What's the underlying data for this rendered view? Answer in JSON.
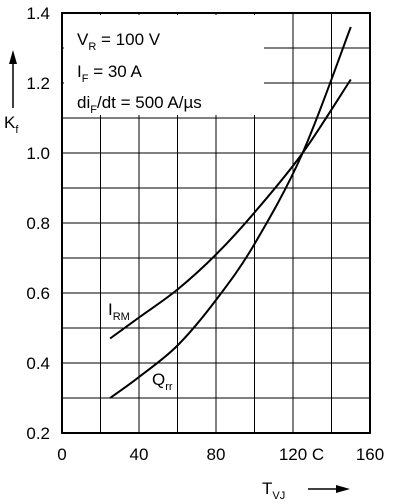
{
  "chart_data": {
    "type": "line",
    "xlim": [
      0,
      160
    ],
    "ylim": [
      0.2,
      1.4
    ],
    "x_ticks": [
      "0",
      "40",
      "80",
      "120",
      "160"
    ],
    "x_unit_label": "C",
    "y_ticks": [
      "0.2",
      "0.4",
      "0.6",
      "0.8",
      "1.0",
      "1.2",
      "1.4"
    ],
    "grid": true,
    "xlabel": {
      "main": "T",
      "sub": "VJ"
    },
    "ylabel": {
      "main": "K",
      "sub": "f"
    },
    "conditions": [
      {
        "main": "V",
        "sub": "R",
        "rest": " = 100 V"
      },
      {
        "main": "I",
        "sub": "F",
        "rest": " = 30 A"
      },
      {
        "main": "di",
        "sub": "F",
        "rest": "/dt = 500 A/µs"
      }
    ],
    "series": [
      {
        "name": "I_RM",
        "label": {
          "main": "I",
          "sub": "RM"
        },
        "x": [
          25,
          40,
          60,
          80,
          100,
          125,
          150
        ],
        "y": [
          0.47,
          0.53,
          0.61,
          0.71,
          0.83,
          1.0,
          1.21
        ]
      },
      {
        "name": "Q_rr",
        "label": {
          "main": "Q",
          "sub": "rr"
        },
        "x": [
          25,
          40,
          60,
          80,
          100,
          125,
          150
        ],
        "y": [
          0.3,
          0.36,
          0.45,
          0.58,
          0.74,
          1.0,
          1.36
        ]
      }
    ],
    "colors": {
      "line": "#000000",
      "grid": "#000000",
      "background": "#ffffff"
    }
  }
}
